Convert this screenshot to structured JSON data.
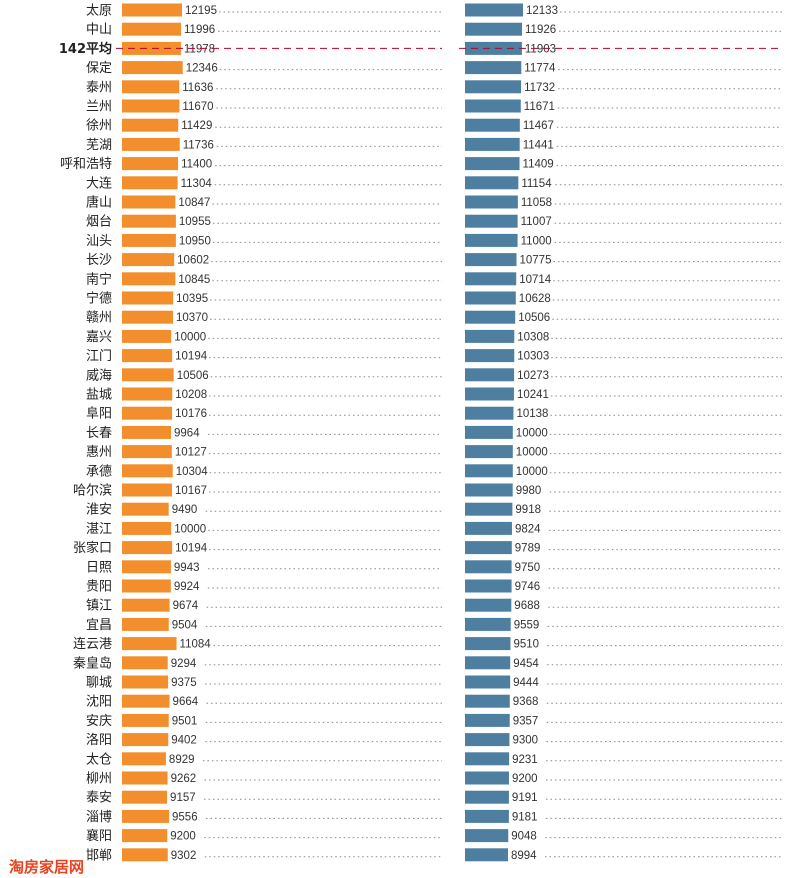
{
  "chart_data": {
    "type": "bar",
    "orientation": "horizontal",
    "categories": [
      "太原",
      "中山",
      "平均",
      "保定",
      "泰州",
      "兰州",
      "徐州",
      "芜湖",
      "呼和浩特",
      "大连",
      "唐山",
      "烟台",
      "汕头",
      "长沙",
      "南宁",
      "宁德",
      "赣州",
      "嘉兴",
      "江门",
      "威海",
      "盐城",
      "阜阳",
      "长春",
      "惠州",
      "承德",
      "哈尔滨",
      "淮安",
      "湛江",
      "张家口",
      "日照",
      "贵阳",
      "镇江",
      "宜昌",
      "连云港",
      "秦皇岛",
      "聊城",
      "沈阳",
      "安庆",
      "洛阳",
      "太仓",
      "柳州",
      "泰安",
      "淄博",
      "襄阳",
      "邯郸"
    ],
    "average_category": "平均",
    "average_prefix": "142",
    "series": [
      {
        "color": "#F28E2B",
        "values": [
          12195,
          11996,
          11978,
          12346,
          11636,
          11670,
          11429,
          11736,
          11400,
          11304,
          10847,
          10955,
          10950,
          10602,
          10845,
          10395,
          10370,
          10000,
          10194,
          10506,
          10208,
          10176,
          9964,
          10127,
          10304,
          10167,
          9490,
          10000,
          10194,
          9943,
          9924,
          9674,
          9504,
          11084,
          9294,
          9375,
          9664,
          9501,
          9402,
          8929,
          9262,
          9157,
          9556,
          9200,
          9302
        ]
      },
      {
        "color": "#4E7FA0",
        "values": [
          12133,
          11926,
          11903,
          11774,
          11732,
          11671,
          11467,
          11441,
          11409,
          11154,
          11058,
          11007,
          11000,
          10775,
          10714,
          10628,
          10506,
          10308,
          10303,
          10273,
          10241,
          10138,
          10000,
          10000,
          10000,
          9980,
          9918,
          9824,
          9789,
          9750,
          9746,
          9688,
          9559,
          9510,
          9454,
          9444,
          9368,
          9357,
          9300,
          9231,
          9200,
          9191,
          9181,
          9048,
          8994
        ]
      }
    ],
    "xlim": [
      0,
      13000
    ],
    "grid": false,
    "legend": "none"
  },
  "watermark": "淘房家居网"
}
